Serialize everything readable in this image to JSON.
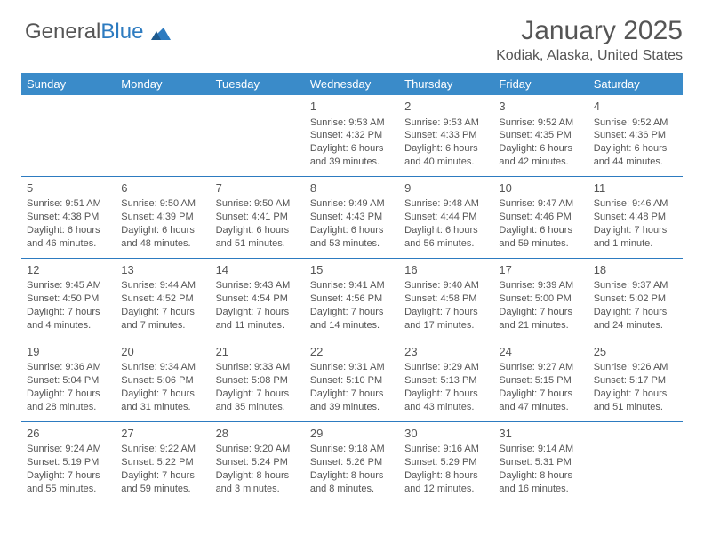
{
  "logo": {
    "text1": "General",
    "text2": "Blue"
  },
  "header": {
    "title": "January 2025",
    "location": "Kodiak, Alaska, United States"
  },
  "colors": {
    "header_bg": "#3a8bc9",
    "header_text": "#ffffff",
    "border": "#2d7bc0",
    "text": "#555555",
    "logo_blue": "#2d7bc0"
  },
  "dayNames": [
    "Sunday",
    "Monday",
    "Tuesday",
    "Wednesday",
    "Thursday",
    "Friday",
    "Saturday"
  ],
  "weeks": [
    [
      null,
      null,
      null,
      {
        "n": "1",
        "sr": "Sunrise: 9:53 AM",
        "ss": "Sunset: 4:32 PM",
        "dl": "Daylight: 6 hours and 39 minutes."
      },
      {
        "n": "2",
        "sr": "Sunrise: 9:53 AM",
        "ss": "Sunset: 4:33 PM",
        "dl": "Daylight: 6 hours and 40 minutes."
      },
      {
        "n": "3",
        "sr": "Sunrise: 9:52 AM",
        "ss": "Sunset: 4:35 PM",
        "dl": "Daylight: 6 hours and 42 minutes."
      },
      {
        "n": "4",
        "sr": "Sunrise: 9:52 AM",
        "ss": "Sunset: 4:36 PM",
        "dl": "Daylight: 6 hours and 44 minutes."
      }
    ],
    [
      {
        "n": "5",
        "sr": "Sunrise: 9:51 AM",
        "ss": "Sunset: 4:38 PM",
        "dl": "Daylight: 6 hours and 46 minutes."
      },
      {
        "n": "6",
        "sr": "Sunrise: 9:50 AM",
        "ss": "Sunset: 4:39 PM",
        "dl": "Daylight: 6 hours and 48 minutes."
      },
      {
        "n": "7",
        "sr": "Sunrise: 9:50 AM",
        "ss": "Sunset: 4:41 PM",
        "dl": "Daylight: 6 hours and 51 minutes."
      },
      {
        "n": "8",
        "sr": "Sunrise: 9:49 AM",
        "ss": "Sunset: 4:43 PM",
        "dl": "Daylight: 6 hours and 53 minutes."
      },
      {
        "n": "9",
        "sr": "Sunrise: 9:48 AM",
        "ss": "Sunset: 4:44 PM",
        "dl": "Daylight: 6 hours and 56 minutes."
      },
      {
        "n": "10",
        "sr": "Sunrise: 9:47 AM",
        "ss": "Sunset: 4:46 PM",
        "dl": "Daylight: 6 hours and 59 minutes."
      },
      {
        "n": "11",
        "sr": "Sunrise: 9:46 AM",
        "ss": "Sunset: 4:48 PM",
        "dl": "Daylight: 7 hours and 1 minute."
      }
    ],
    [
      {
        "n": "12",
        "sr": "Sunrise: 9:45 AM",
        "ss": "Sunset: 4:50 PM",
        "dl": "Daylight: 7 hours and 4 minutes."
      },
      {
        "n": "13",
        "sr": "Sunrise: 9:44 AM",
        "ss": "Sunset: 4:52 PM",
        "dl": "Daylight: 7 hours and 7 minutes."
      },
      {
        "n": "14",
        "sr": "Sunrise: 9:43 AM",
        "ss": "Sunset: 4:54 PM",
        "dl": "Daylight: 7 hours and 11 minutes."
      },
      {
        "n": "15",
        "sr": "Sunrise: 9:41 AM",
        "ss": "Sunset: 4:56 PM",
        "dl": "Daylight: 7 hours and 14 minutes."
      },
      {
        "n": "16",
        "sr": "Sunrise: 9:40 AM",
        "ss": "Sunset: 4:58 PM",
        "dl": "Daylight: 7 hours and 17 minutes."
      },
      {
        "n": "17",
        "sr": "Sunrise: 9:39 AM",
        "ss": "Sunset: 5:00 PM",
        "dl": "Daylight: 7 hours and 21 minutes."
      },
      {
        "n": "18",
        "sr": "Sunrise: 9:37 AM",
        "ss": "Sunset: 5:02 PM",
        "dl": "Daylight: 7 hours and 24 minutes."
      }
    ],
    [
      {
        "n": "19",
        "sr": "Sunrise: 9:36 AM",
        "ss": "Sunset: 5:04 PM",
        "dl": "Daylight: 7 hours and 28 minutes."
      },
      {
        "n": "20",
        "sr": "Sunrise: 9:34 AM",
        "ss": "Sunset: 5:06 PM",
        "dl": "Daylight: 7 hours and 31 minutes."
      },
      {
        "n": "21",
        "sr": "Sunrise: 9:33 AM",
        "ss": "Sunset: 5:08 PM",
        "dl": "Daylight: 7 hours and 35 minutes."
      },
      {
        "n": "22",
        "sr": "Sunrise: 9:31 AM",
        "ss": "Sunset: 5:10 PM",
        "dl": "Daylight: 7 hours and 39 minutes."
      },
      {
        "n": "23",
        "sr": "Sunrise: 9:29 AM",
        "ss": "Sunset: 5:13 PM",
        "dl": "Daylight: 7 hours and 43 minutes."
      },
      {
        "n": "24",
        "sr": "Sunrise: 9:27 AM",
        "ss": "Sunset: 5:15 PM",
        "dl": "Daylight: 7 hours and 47 minutes."
      },
      {
        "n": "25",
        "sr": "Sunrise: 9:26 AM",
        "ss": "Sunset: 5:17 PM",
        "dl": "Daylight: 7 hours and 51 minutes."
      }
    ],
    [
      {
        "n": "26",
        "sr": "Sunrise: 9:24 AM",
        "ss": "Sunset: 5:19 PM",
        "dl": "Daylight: 7 hours and 55 minutes."
      },
      {
        "n": "27",
        "sr": "Sunrise: 9:22 AM",
        "ss": "Sunset: 5:22 PM",
        "dl": "Daylight: 7 hours and 59 minutes."
      },
      {
        "n": "28",
        "sr": "Sunrise: 9:20 AM",
        "ss": "Sunset: 5:24 PM",
        "dl": "Daylight: 8 hours and 3 minutes."
      },
      {
        "n": "29",
        "sr": "Sunrise: 9:18 AM",
        "ss": "Sunset: 5:26 PM",
        "dl": "Daylight: 8 hours and 8 minutes."
      },
      {
        "n": "30",
        "sr": "Sunrise: 9:16 AM",
        "ss": "Sunset: 5:29 PM",
        "dl": "Daylight: 8 hours and 12 minutes."
      },
      {
        "n": "31",
        "sr": "Sunrise: 9:14 AM",
        "ss": "Sunset: 5:31 PM",
        "dl": "Daylight: 8 hours and 16 minutes."
      },
      null
    ]
  ]
}
